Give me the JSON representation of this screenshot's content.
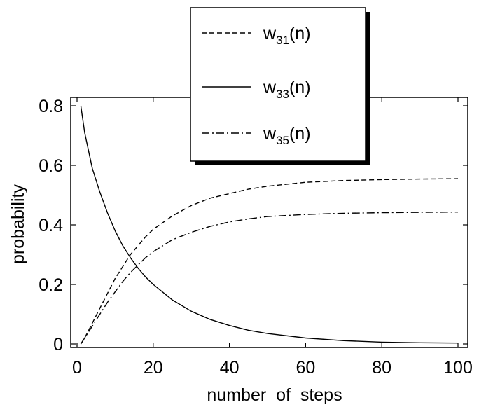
{
  "chart_data": {
    "type": "line",
    "title": "",
    "xlabel": "number  of  steps",
    "ylabel": "probability",
    "xlim": [
      0,
      100
    ],
    "ylim": [
      0,
      0.8
    ],
    "xticks": [
      0,
      20,
      40,
      60,
      80,
      100
    ],
    "xtick_labels": [
      "0",
      "20",
      "40",
      "60",
      "80",
      "100"
    ],
    "yticks": [
      0,
      0.2,
      0.4,
      0.6,
      0.8
    ],
    "ytick_labels": [
      "0",
      "0.2",
      "0.4",
      "0.6",
      "0.8"
    ],
    "grid": false,
    "legend_position": "top-center",
    "x": [
      1,
      2,
      4,
      6,
      8,
      10,
      12,
      14,
      16,
      18,
      20,
      25,
      30,
      35,
      40,
      45,
      50,
      60,
      70,
      80,
      90,
      100
    ],
    "series": [
      {
        "name": "w31(n)",
        "legend_main": "w",
        "legend_sub": "31",
        "legend_tail": "(n)",
        "style": "dashed",
        "values": [
          0.0,
          0.02,
          0.07,
          0.12,
          0.17,
          0.22,
          0.26,
          0.3,
          0.33,
          0.36,
          0.385,
          0.43,
          0.465,
          0.49,
          0.505,
          0.52,
          0.53,
          0.543,
          0.549,
          0.552,
          0.554,
          0.555
        ]
      },
      {
        "name": "w33(n)",
        "legend_main": "w",
        "legend_sub": "33",
        "legend_tail": "(n)",
        "style": "solid",
        "values": [
          0.8,
          0.71,
          0.59,
          0.51,
          0.44,
          0.38,
          0.33,
          0.29,
          0.255,
          0.225,
          0.2,
          0.148,
          0.11,
          0.082,
          0.062,
          0.046,
          0.035,
          0.02,
          0.011,
          0.006,
          0.004,
          0.003
        ]
      },
      {
        "name": "w35(n)",
        "legend_main": "w",
        "legend_sub": "35",
        "legend_tail": "(n)",
        "style": "dashdot",
        "values": [
          0.0,
          0.02,
          0.06,
          0.1,
          0.14,
          0.175,
          0.21,
          0.24,
          0.265,
          0.29,
          0.31,
          0.35,
          0.375,
          0.395,
          0.41,
          0.42,
          0.428,
          0.435,
          0.439,
          0.441,
          0.442,
          0.443
        ]
      }
    ]
  }
}
